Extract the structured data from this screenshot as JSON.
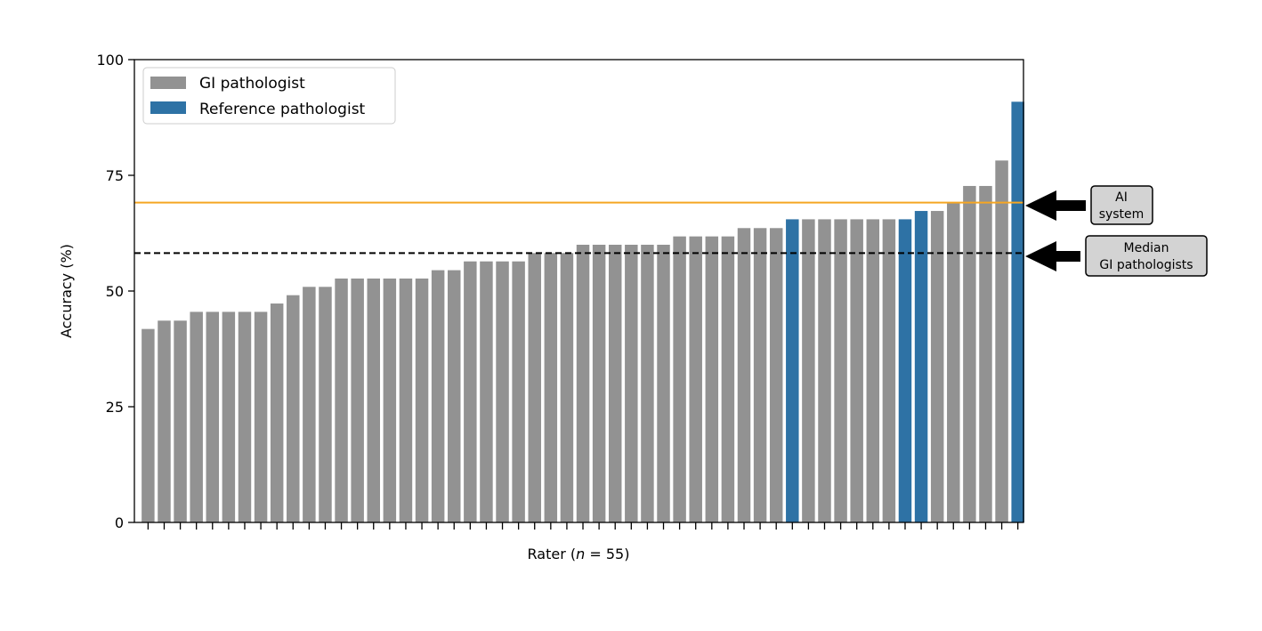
{
  "chart_data": {
    "type": "bar",
    "ylabel": "Accuracy (%)",
    "xlabel_prefix": "Rater (",
    "xlabel_var": "n",
    "xlabel_eq": " = 55)",
    "ylim": [
      0,
      100
    ],
    "yticks": [
      0,
      25,
      50,
      75,
      100
    ],
    "n_raters": 55,
    "values": [
      41.8,
      43.6,
      43.6,
      45.5,
      45.5,
      45.5,
      45.5,
      45.5,
      47.3,
      49.1,
      50.9,
      50.9,
      52.7,
      52.7,
      52.7,
      52.7,
      52.7,
      52.7,
      54.5,
      54.5,
      56.4,
      56.4,
      56.4,
      56.4,
      58.2,
      58.2,
      58.2,
      60.0,
      60.0,
      60.0,
      60.0,
      60.0,
      60.0,
      61.8,
      61.8,
      61.8,
      61.8,
      63.6,
      63.6,
      63.6,
      65.5,
      65.5,
      65.5,
      65.5,
      65.5,
      65.5,
      65.5,
      65.5,
      67.3,
      67.3,
      69.1,
      72.7,
      72.7,
      78.2,
      90.9
    ],
    "groups": [
      "gi",
      "gi",
      "gi",
      "gi",
      "gi",
      "gi",
      "gi",
      "gi",
      "gi",
      "gi",
      "gi",
      "gi",
      "gi",
      "gi",
      "gi",
      "gi",
      "gi",
      "gi",
      "gi",
      "gi",
      "gi",
      "gi",
      "gi",
      "gi",
      "gi",
      "gi",
      "gi",
      "gi",
      "gi",
      "gi",
      "gi",
      "gi",
      "gi",
      "gi",
      "gi",
      "gi",
      "gi",
      "gi",
      "gi",
      "gi",
      "ref",
      "gi",
      "gi",
      "gi",
      "gi",
      "gi",
      "gi",
      "ref",
      "ref",
      "gi",
      "gi",
      "gi",
      "gi",
      "gi",
      "ref"
    ],
    "legend": {
      "position": "top-left",
      "entries": [
        {
          "label": "GI pathologist",
          "color": "#929292"
        },
        {
          "label": "Reference pathologist",
          "color": "#2e72a5"
        }
      ]
    },
    "reference_lines": {
      "ai_system": {
        "value": 69.1,
        "color": "#f5a623",
        "style": "solid"
      },
      "median_gi": {
        "value": 58.2,
        "color": "#000000",
        "style": "dashed"
      }
    },
    "annotations": {
      "ai": [
        "AI",
        "system"
      ],
      "median": [
        "Median",
        "GI pathologists"
      ]
    },
    "grid": false
  }
}
